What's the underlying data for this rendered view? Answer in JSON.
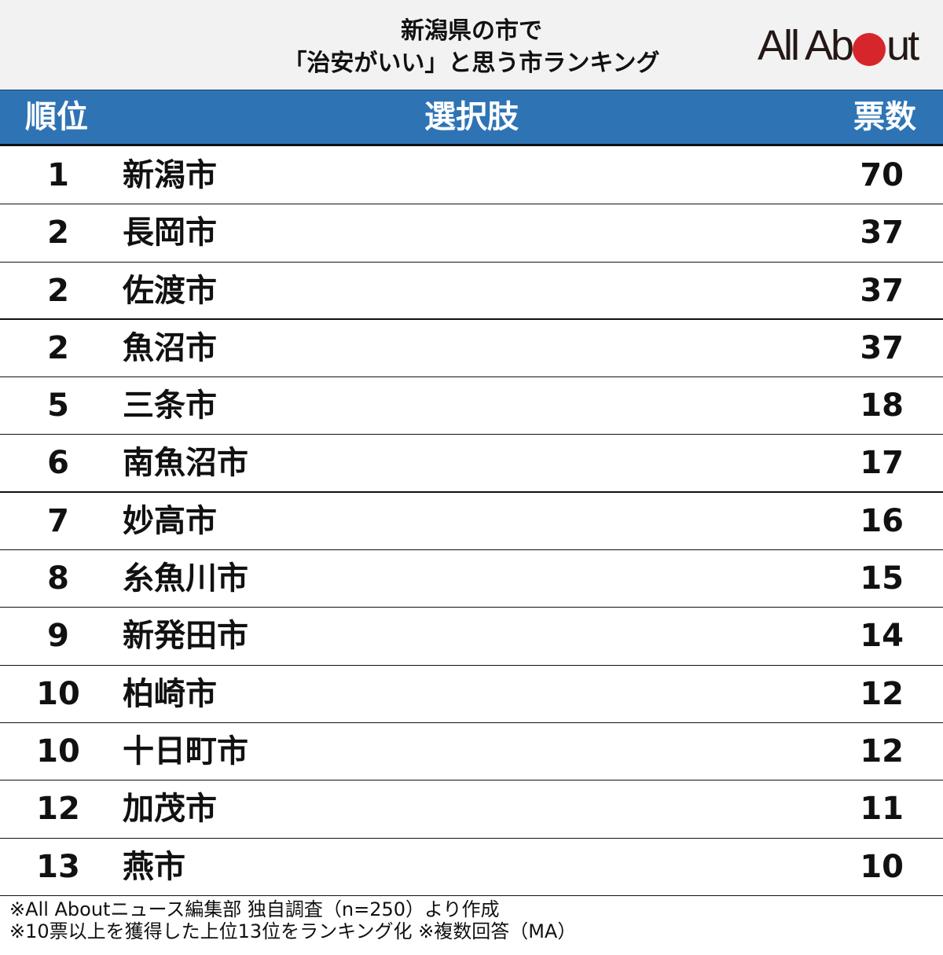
{
  "header": {
    "title_line1": "新潟県の市で",
    "title_line2": "「治安がいい」と思う市ランキング",
    "logo": {
      "text_before": "All Ab",
      "text_after": "ut",
      "dot_color": "#d7262b"
    }
  },
  "table": {
    "columns": {
      "rank": "順位",
      "choice": "選択肢",
      "votes": "票数"
    },
    "rows": [
      {
        "rank": "1",
        "name": "新潟市",
        "votes": "70"
      },
      {
        "rank": "2",
        "name": "長岡市",
        "votes": "37"
      },
      {
        "rank": "2",
        "name": "佐渡市",
        "votes": "37"
      },
      {
        "rank": "2",
        "name": "魚沼市",
        "votes": "37"
      },
      {
        "rank": "5",
        "name": "三条市",
        "votes": "18"
      },
      {
        "rank": "6",
        "name": "南魚沼市",
        "votes": "17"
      },
      {
        "rank": "7",
        "name": "妙高市",
        "votes": "16"
      },
      {
        "rank": "8",
        "name": "糸魚川市",
        "votes": "15"
      },
      {
        "rank": "9",
        "name": "新発田市",
        "votes": "14"
      },
      {
        "rank": "10",
        "name": "柏崎市",
        "votes": "12"
      },
      {
        "rank": "10",
        "name": "十日町市",
        "votes": "12"
      },
      {
        "rank": "12",
        "name": "加茂市",
        "votes": "11"
      },
      {
        "rank": "13",
        "name": "燕市",
        "votes": "10"
      }
    ]
  },
  "notes": {
    "line1": "※All Aboutニュース編集部 独自調査（n=250）より作成",
    "line2": "※10票以上を獲得した上位13位をランキング化 ※複数回答（MA）"
  },
  "colors": {
    "header_bg": "#2e74b5",
    "title_bg": "#f2f2f2"
  },
  "chart_data": {
    "type": "table",
    "title": "新潟県の市で「治安がいい」と思う市ランキング",
    "columns": [
      "順位",
      "選択肢",
      "票数"
    ],
    "categories": [
      "新潟市",
      "長岡市",
      "佐渡市",
      "魚沼市",
      "三条市",
      "南魚沼市",
      "妙高市",
      "糸魚川市",
      "新発田市",
      "柏崎市",
      "十日町市",
      "加茂市",
      "燕市"
    ],
    "ranks": [
      1,
      2,
      2,
      2,
      5,
      6,
      7,
      8,
      9,
      10,
      10,
      12,
      13
    ],
    "values": [
      70,
      37,
      37,
      37,
      18,
      17,
      16,
      15,
      14,
      12,
      12,
      11,
      10
    ],
    "notes": [
      "※All Aboutニュース編集部 独自調査（n=250）より作成",
      "※10票以上を獲得した上位13位をランキング化 ※複数回答（MA）"
    ]
  }
}
